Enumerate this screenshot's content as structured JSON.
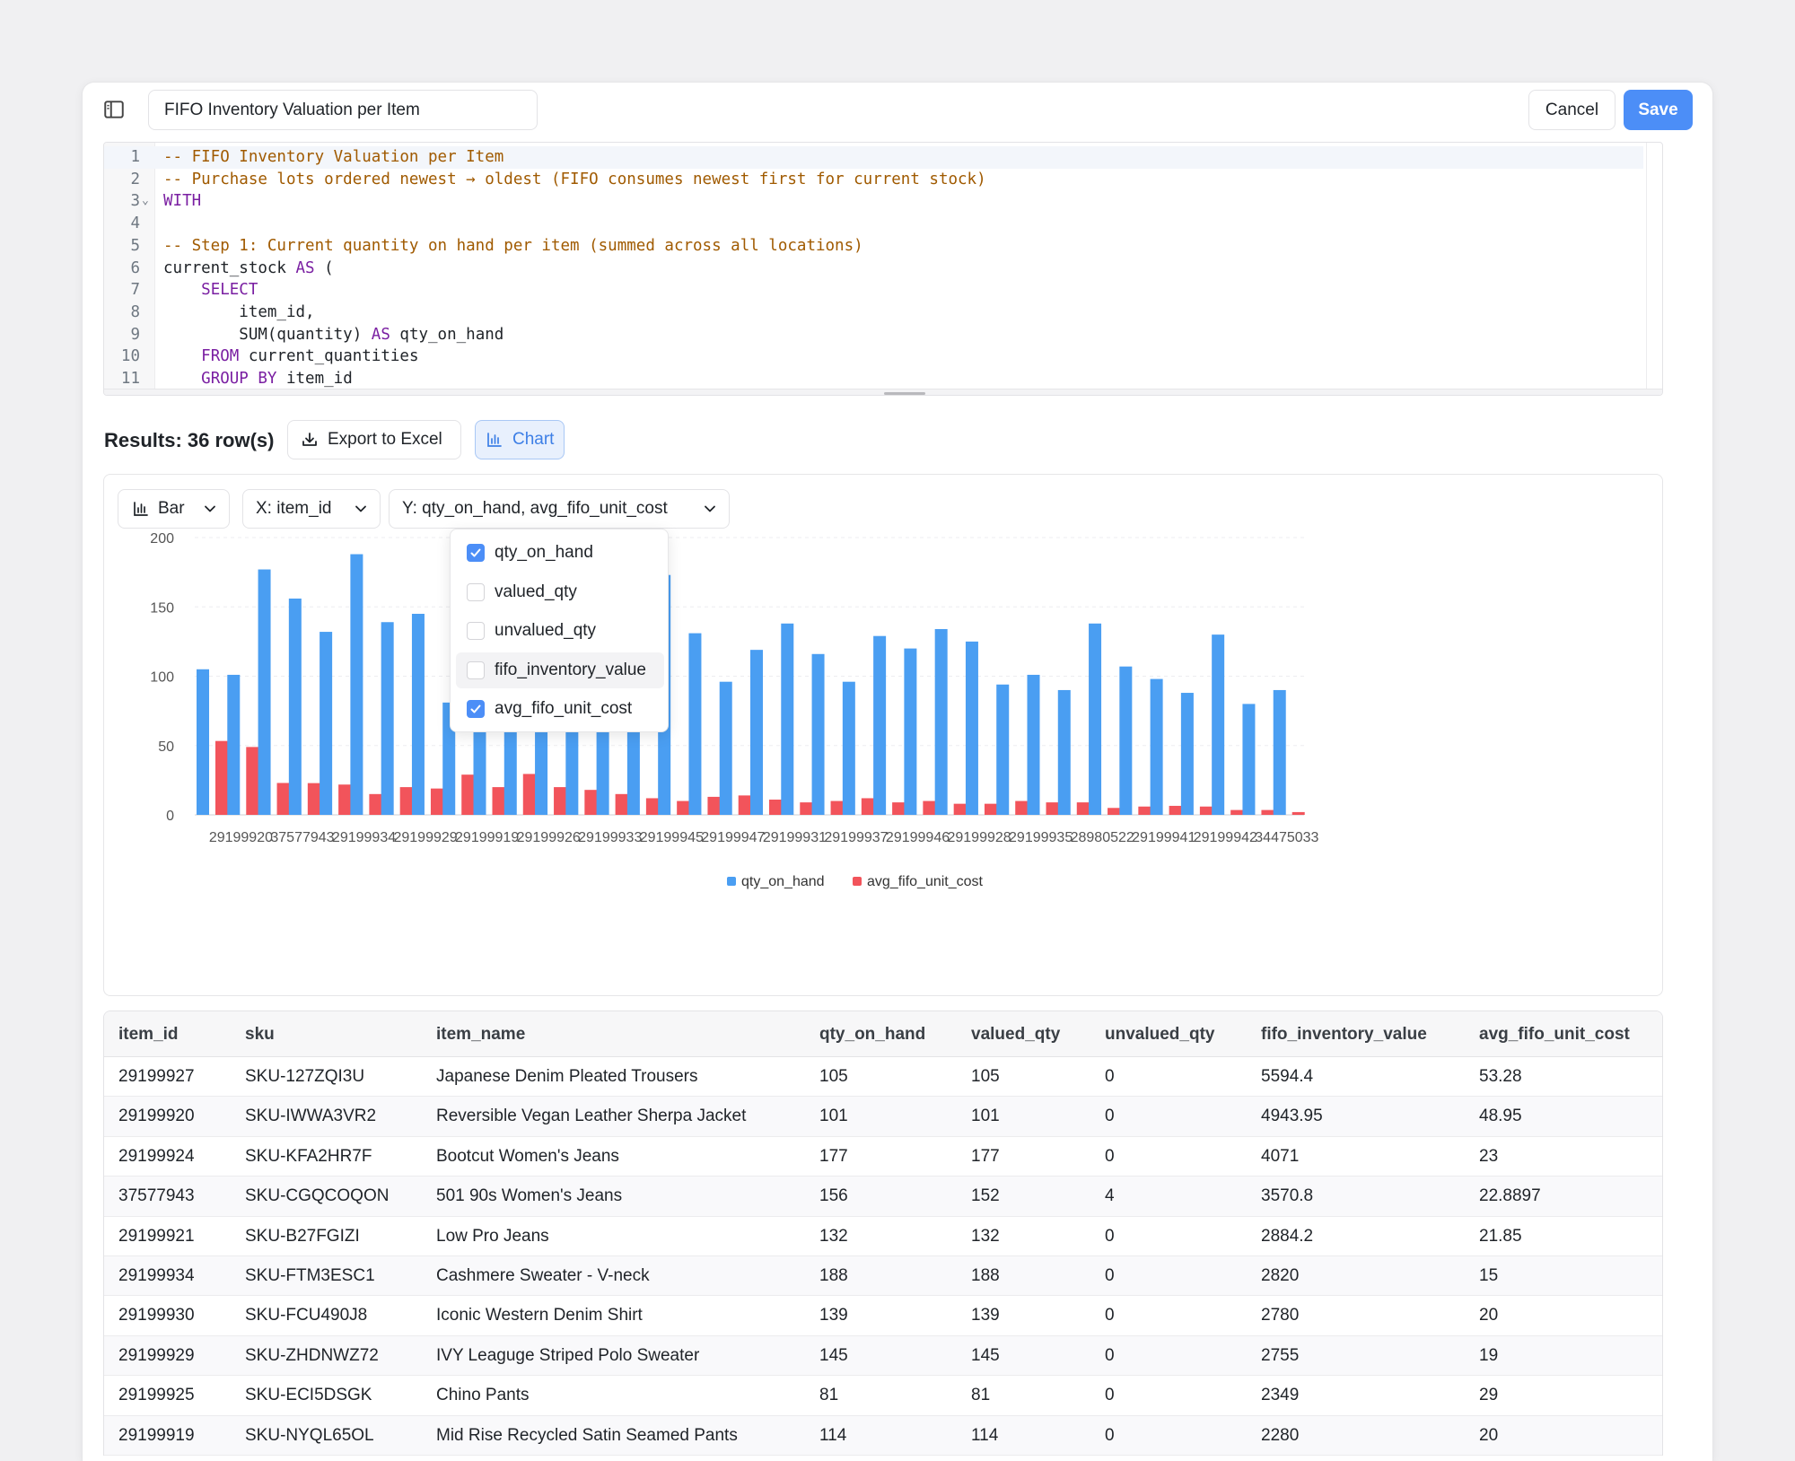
{
  "header": {
    "query_title": "FIFO Inventory Valuation per Item",
    "cancel_label": "Cancel",
    "save_label": "Save"
  },
  "editor": {
    "lines": [
      {
        "num": "1",
        "code": [
          {
            "t": "-- FIFO Inventory Valuation per Item",
            "c": "cm"
          }
        ]
      },
      {
        "num": "2",
        "code": [
          {
            "t": "-- Purchase lots ordered newest → oldest (FIFO consumes newest first for current stock)",
            "c": "cm"
          }
        ]
      },
      {
        "num": "3",
        "fold": true,
        "code": [
          {
            "t": "WITH",
            "c": "kw"
          }
        ]
      },
      {
        "num": "4",
        "code": []
      },
      {
        "num": "5",
        "code": [
          {
            "t": "-- Step 1: Current quantity on hand per item (summed across all locations)",
            "c": "cm"
          }
        ]
      },
      {
        "num": "6",
        "code": [
          {
            "t": "current_stock ",
            "c": ""
          },
          {
            "t": "AS",
            "c": "kw"
          },
          {
            "t": " (",
            "c": ""
          }
        ]
      },
      {
        "num": "7",
        "code": [
          {
            "t": "    ",
            "c": ""
          },
          {
            "t": "SELECT",
            "c": "kw"
          }
        ]
      },
      {
        "num": "8",
        "code": [
          {
            "t": "        item_id,",
            "c": ""
          }
        ]
      },
      {
        "num": "9",
        "code": [
          {
            "t": "        SUM(quantity) ",
            "c": ""
          },
          {
            "t": "AS",
            "c": "kw"
          },
          {
            "t": " qty_on_hand",
            "c": ""
          }
        ]
      },
      {
        "num": "10",
        "code": [
          {
            "t": "    ",
            "c": ""
          },
          {
            "t": "FROM",
            "c": "kw"
          },
          {
            "t": " current_quantities",
            "c": ""
          }
        ]
      },
      {
        "num": "11",
        "code": [
          {
            "t": "    ",
            "c": ""
          },
          {
            "t": "GROUP BY",
            "c": "kw"
          },
          {
            "t": " item_id",
            "c": ""
          }
        ]
      }
    ]
  },
  "results": {
    "label": "Results: 36 row(s)",
    "export_label": "Export to Excel",
    "chart_label": "Chart"
  },
  "chart_controls": {
    "type_label": "Bar",
    "x_label": "X: item_id",
    "y_label": "Y: qty_on_hand, avg_fifo_unit_cost",
    "y_options": [
      {
        "label": "qty_on_hand",
        "checked": true
      },
      {
        "label": "valued_qty",
        "checked": false
      },
      {
        "label": "unvalued_qty",
        "checked": false
      },
      {
        "label": "fifo_inventory_value",
        "checked": false
      },
      {
        "label": "avg_fifo_unit_cost",
        "checked": true
      }
    ]
  },
  "colors": {
    "qty_on_hand": "#4a9ef2",
    "avg_fifo_unit_cost": "#f2545b",
    "accent": "#4c8ef7"
  },
  "chart_data": {
    "type": "bar",
    "ylim": [
      0,
      200
    ],
    "y_ticks": [
      "0",
      "50",
      "100",
      "150",
      "200"
    ],
    "x_tick_labels": [
      "29199920",
      "37577943",
      "29199934",
      "29199929",
      "29199919",
      "29199926",
      "29199933",
      "29199945",
      "29199947",
      "29199931",
      "29199937",
      "29199946",
      "29199928",
      "29199935",
      "28980522",
      "29199941",
      "29199942",
      "34475033"
    ],
    "legend_position": "bottom",
    "grid": true,
    "series": [
      {
        "name": "qty_on_hand",
        "values": [
          105,
          101,
          177,
          156,
          132,
          188,
          139,
          145,
          81,
          114,
          73,
          145,
          111,
          136,
          156,
          173,
          131,
          96,
          119,
          138,
          116,
          96,
          129,
          120,
          134,
          125,
          94,
          101,
          90,
          138,
          107,
          98,
          88,
          130,
          80,
          90
        ]
      },
      {
        "name": "avg_fifo_unit_cost",
        "values": [
          53.28,
          48.95,
          23,
          22.8897,
          21.85,
          15,
          20,
          19,
          29,
          20,
          29.5,
          20,
          18,
          15,
          12,
          10,
          13,
          14,
          11,
          9,
          10,
          12,
          9,
          10,
          8,
          8,
          10,
          9,
          9,
          5,
          6,
          6.5,
          6,
          3.5,
          3.5,
          2
        ]
      }
    ]
  },
  "table": {
    "columns": [
      "item_id",
      "sku",
      "item_name",
      "qty_on_hand",
      "valued_qty",
      "unvalued_qty",
      "fifo_inventory_value",
      "avg_fifo_unit_cost"
    ],
    "rows": [
      [
        "29199927",
        "SKU-127ZQI3U",
        "Japanese Denim Pleated Trousers",
        "105",
        "105",
        "0",
        "5594.4",
        "53.28"
      ],
      [
        "29199920",
        "SKU-IWWA3VR2",
        "Reversible Vegan Leather Sherpa Jacket",
        "101",
        "101",
        "0",
        "4943.95",
        "48.95"
      ],
      [
        "29199924",
        "SKU-KFA2HR7F",
        "Bootcut Women's Jeans",
        "177",
        "177",
        "0",
        "4071",
        "23"
      ],
      [
        "37577943",
        "SKU-CGQCOQON",
        "501 90s Women's Jeans",
        "156",
        "152",
        "4",
        "3570.8",
        "22.8897"
      ],
      [
        "29199921",
        "SKU-B27FGIZI",
        "Low Pro Jeans",
        "132",
        "132",
        "0",
        "2884.2",
        "21.85"
      ],
      [
        "29199934",
        "SKU-FTM3ESC1",
        "Cashmere Sweater - V-neck",
        "188",
        "188",
        "0",
        "2820",
        "15"
      ],
      [
        "29199930",
        "SKU-FCU490J8",
        "Iconic Western Denim Shirt",
        "139",
        "139",
        "0",
        "2780",
        "20"
      ],
      [
        "29199929",
        "SKU-ZHDNWZ72",
        "IVY Leaguge Striped Polo Sweater",
        "145",
        "145",
        "0",
        "2755",
        "19"
      ],
      [
        "29199925",
        "SKU-ECI5DSGK",
        "Chino Pants",
        "81",
        "81",
        "0",
        "2349",
        "29"
      ],
      [
        "29199919",
        "SKU-NYQL65OL",
        "Mid Rise Recycled Satin Seamed Pants",
        "114",
        "114",
        "0",
        "2280",
        "20"
      ]
    ]
  }
}
